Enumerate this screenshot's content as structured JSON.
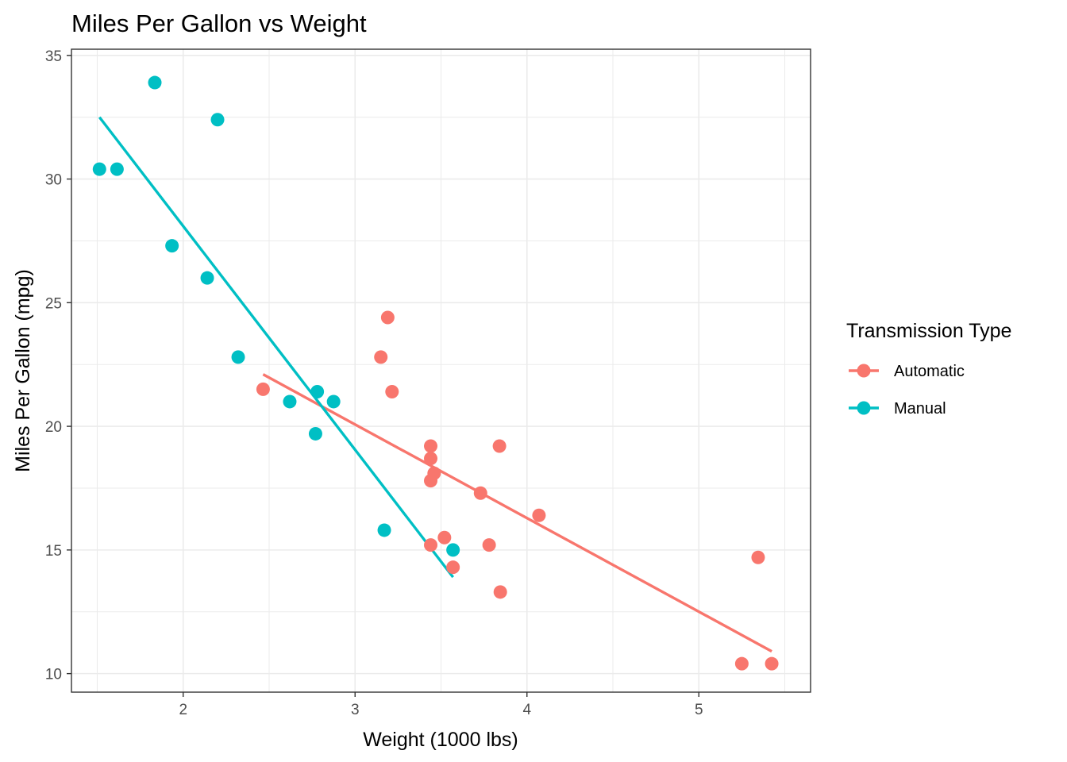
{
  "chart_data": {
    "type": "scatter",
    "title": "Miles Per Gallon vs Weight",
    "xlabel": "Weight (1000 lbs)",
    "ylabel": "Miles Per Gallon (mpg)",
    "xlim": [
      1.35,
      5.65
    ],
    "ylim": [
      9.25,
      35.25
    ],
    "x_ticks": [
      2,
      3,
      4,
      5
    ],
    "y_ticks": [
      10,
      15,
      20,
      25,
      30,
      35
    ],
    "x_minor_ticks": [
      1.5,
      2.5,
      3.5,
      4.5,
      5.5
    ],
    "y_minor_ticks": [
      12.5,
      17.5,
      22.5,
      27.5,
      32.5
    ],
    "grid": true,
    "legend": {
      "title": "Transmission Type",
      "position": "right",
      "entries": [
        "Automatic",
        "Manual"
      ]
    },
    "series": [
      {
        "name": "Automatic",
        "color": "#F8766D",
        "points": [
          {
            "x": 2.465,
            "y": 21.5
          },
          {
            "x": 3.15,
            "y": 22.8
          },
          {
            "x": 3.19,
            "y": 24.4
          },
          {
            "x": 3.215,
            "y": 21.4
          },
          {
            "x": 3.44,
            "y": 19.2
          },
          {
            "x": 3.44,
            "y": 18.7
          },
          {
            "x": 3.44,
            "y": 17.8
          },
          {
            "x": 3.46,
            "y": 18.1
          },
          {
            "x": 3.44,
            "y": 15.2
          },
          {
            "x": 3.52,
            "y": 15.5
          },
          {
            "x": 3.57,
            "y": 14.3
          },
          {
            "x": 3.73,
            "y": 17.3
          },
          {
            "x": 3.78,
            "y": 15.2
          },
          {
            "x": 3.84,
            "y": 19.2
          },
          {
            "x": 3.845,
            "y": 13.3
          },
          {
            "x": 4.07,
            "y": 16.4
          },
          {
            "x": 5.25,
            "y": 10.4
          },
          {
            "x": 5.345,
            "y": 14.7
          },
          {
            "x": 5.424,
            "y": 10.4
          }
        ],
        "fit": {
          "x": [
            2.465,
            5.424
          ],
          "y": [
            22.1,
            10.9
          ]
        }
      },
      {
        "name": "Manual",
        "color": "#00BFC4",
        "points": [
          {
            "x": 1.513,
            "y": 30.4
          },
          {
            "x": 1.615,
            "y": 30.4
          },
          {
            "x": 1.835,
            "y": 33.9
          },
          {
            "x": 1.935,
            "y": 27.3
          },
          {
            "x": 2.14,
            "y": 26.0
          },
          {
            "x": 2.2,
            "y": 32.4
          },
          {
            "x": 2.32,
            "y": 22.8
          },
          {
            "x": 2.62,
            "y": 21.0
          },
          {
            "x": 2.77,
            "y": 19.7
          },
          {
            "x": 2.78,
            "y": 21.4
          },
          {
            "x": 2.875,
            "y": 21.0
          },
          {
            "x": 3.17,
            "y": 15.8
          },
          {
            "x": 3.57,
            "y": 15.0
          }
        ],
        "fit": {
          "x": [
            1.513,
            3.57
          ],
          "y": [
            32.5,
            13.9
          ]
        }
      }
    ]
  }
}
